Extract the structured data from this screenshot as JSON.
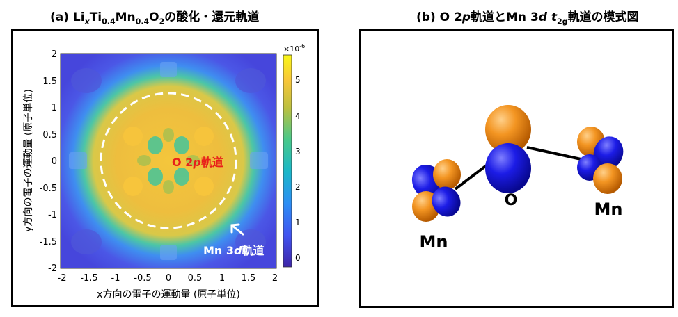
{
  "panel_a": {
    "title_prefix": "(a) Li",
    "title_x": "x",
    "title_ti": "Ti",
    "title_ti_sub": "0.4",
    "title_mn": "Mn",
    "title_mn_sub": "0.4",
    "title_o": "O",
    "title_o_sub": "2",
    "title_suffix": "の酸化・還元軌道",
    "xlabel": "x方向の電子の運動量 (原子単位)",
    "ylabel": "y方向の電子の運動量 (原子単位)",
    "x_ticks": [
      "-2",
      "-1.5",
      "-1",
      "-0.5",
      "0",
      "0.5",
      "1",
      "1.5",
      "2"
    ],
    "y_ticks": [
      "2",
      "1.5",
      "1",
      "0.5",
      "0",
      "-0.5",
      "-1",
      "-1.5",
      "-2"
    ],
    "colorbar_ticks": [
      "5",
      "4",
      "3",
      "2",
      "1",
      "0"
    ],
    "colorbar_exponent": "×10",
    "colorbar_exponent_power": "-6",
    "o2p_label": "O 2",
    "o2p_label_p": "p",
    "o2p_label_suffix": "軌道",
    "mn3d_label": "Mn 3",
    "mn3d_label_d": "d",
    "mn3d_label_suffix": "軌道",
    "colors": {
      "low": "#3b3fd1",
      "mid": "#2ec2b0",
      "high": "#f2c03a",
      "o2p_text": "#e8201a",
      "mn3d_text": "#ffffff",
      "circle": "#ffffff"
    }
  },
  "panel_b": {
    "title_prefix": "(b) O 2",
    "title_p": "p",
    "title_mid": "軌道とMn 3",
    "title_d": "d",
    "title_t": "t",
    "title_t_sub": "2g",
    "title_suffix": "軌道の模式図",
    "label_o": "O",
    "label_mn_left": "Mn",
    "label_mn_right": "Mn",
    "colors": {
      "orange": "#f18a14",
      "blue": "#1818d8",
      "bond": "#000000"
    }
  }
}
